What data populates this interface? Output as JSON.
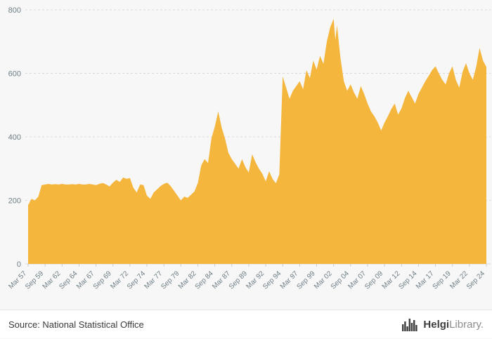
{
  "footer": {
    "source": "Source: National Statistical Office",
    "brand_bold": "Helgi",
    "brand_light": "Library."
  },
  "chart_data": {
    "type": "area",
    "title": "",
    "xlabel": "",
    "ylabel": "",
    "legend": "none",
    "grid": "horizontal-dashed",
    "background": "#f7f7f7",
    "fill_color": "#F5B63E",
    "grid_color": "#d8d8d8",
    "tick_color": "#6d7d85",
    "ylim": [
      0,
      800
    ],
    "xlim": [
      1957.25,
      2024.75
    ],
    "y_ticks": [
      0,
      200,
      400,
      600,
      800
    ],
    "x_ticks": [
      {
        "label": "Mar 57",
        "year": 1957.25
      },
      {
        "label": "Sep 59",
        "year": 1959.75
      },
      {
        "label": "Mar 62",
        "year": 1962.25
      },
      {
        "label": "Sep 64",
        "year": 1964.75
      },
      {
        "label": "Mar 67",
        "year": 1967.25
      },
      {
        "label": "Sep 69",
        "year": 1969.75
      },
      {
        "label": "Mar 72",
        "year": 1972.25
      },
      {
        "label": "Sep 74",
        "year": 1974.75
      },
      {
        "label": "Mar 77",
        "year": 1977.25
      },
      {
        "label": "Sep 79",
        "year": 1979.75
      },
      {
        "label": "Mar 82",
        "year": 1982.25
      },
      {
        "label": "Sep 84",
        "year": 1984.75
      },
      {
        "label": "Mar 87",
        "year": 1987.25
      },
      {
        "label": "Sep 89",
        "year": 1989.75
      },
      {
        "label": "Mar 92",
        "year": 1992.25
      },
      {
        "label": "Sep 94",
        "year": 1994.75
      },
      {
        "label": "Mar 97",
        "year": 1997.25
      },
      {
        "label": "Sep 99",
        "year": 1999.75
      },
      {
        "label": "Mar 02",
        "year": 2002.25
      },
      {
        "label": "Sep 04",
        "year": 2004.75
      },
      {
        "label": "Mar 07",
        "year": 2007.25
      },
      {
        "label": "Sep 09",
        "year": 2009.75
      },
      {
        "label": "Mar 12",
        "year": 2012.25
      },
      {
        "label": "Sep 14",
        "year": 2014.75
      },
      {
        "label": "Mar 17",
        "year": 2017.25
      },
      {
        "label": "Sep 19",
        "year": 2019.75
      },
      {
        "label": "Mar 22",
        "year": 2022.25
      },
      {
        "label": "Sep 24",
        "year": 2024.75
      }
    ],
    "series": [
      {
        "name": "value",
        "points": [
          [
            1957.25,
            185
          ],
          [
            1957.75,
            205
          ],
          [
            1958.25,
            200
          ],
          [
            1958.75,
            212
          ],
          [
            1959.25,
            248
          ],
          [
            1959.75,
            250
          ],
          [
            1960.25,
            252
          ],
          [
            1960.75,
            250
          ],
          [
            1961.25,
            251
          ],
          [
            1961.75,
            250
          ],
          [
            1962.25,
            252
          ],
          [
            1962.75,
            250
          ],
          [
            1963.25,
            250
          ],
          [
            1963.75,
            251
          ],
          [
            1964.25,
            250
          ],
          [
            1964.75,
            252
          ],
          [
            1965.25,
            250
          ],
          [
            1965.75,
            250
          ],
          [
            1966.25,
            252
          ],
          [
            1966.75,
            250
          ],
          [
            1967.25,
            248
          ],
          [
            1967.75,
            252
          ],
          [
            1968.25,
            255
          ],
          [
            1968.75,
            250
          ],
          [
            1969.25,
            244
          ],
          [
            1969.75,
            256
          ],
          [
            1970.25,
            265
          ],
          [
            1970.75,
            258
          ],
          [
            1971.25,
            272
          ],
          [
            1971.75,
            268
          ],
          [
            1972.25,
            270
          ],
          [
            1972.75,
            240
          ],
          [
            1973.25,
            225
          ],
          [
            1973.75,
            250
          ],
          [
            1974.25,
            248
          ],
          [
            1974.75,
            215
          ],
          [
            1975.25,
            205
          ],
          [
            1975.75,
            225
          ],
          [
            1976.25,
            235
          ],
          [
            1976.75,
            245
          ],
          [
            1977.25,
            252
          ],
          [
            1977.75,
            256
          ],
          [
            1978.25,
            245
          ],
          [
            1978.75,
            230
          ],
          [
            1979.25,
            215
          ],
          [
            1979.75,
            200
          ],
          [
            1980.25,
            212
          ],
          [
            1980.75,
            208
          ],
          [
            1981.25,
            218
          ],
          [
            1981.75,
            228
          ],
          [
            1982.25,
            255
          ],
          [
            1982.75,
            310
          ],
          [
            1983.25,
            330
          ],
          [
            1983.75,
            318
          ],
          [
            1984.25,
            395
          ],
          [
            1984.75,
            432
          ],
          [
            1985.25,
            480
          ],
          [
            1985.75,
            430
          ],
          [
            1986.25,
            395
          ],
          [
            1986.75,
            350
          ],
          [
            1987.25,
            330
          ],
          [
            1987.75,
            315
          ],
          [
            1988.25,
            300
          ],
          [
            1988.75,
            330
          ],
          [
            1989.25,
            305
          ],
          [
            1989.75,
            288
          ],
          [
            1990.25,
            345
          ],
          [
            1990.75,
            320
          ],
          [
            1991.25,
            300
          ],
          [
            1991.75,
            284
          ],
          [
            1992.25,
            260
          ],
          [
            1992.75,
            292
          ],
          [
            1993.25,
            268
          ],
          [
            1993.75,
            254
          ],
          [
            1994.25,
            282
          ],
          [
            1994.75,
            590
          ],
          [
            1995.25,
            555
          ],
          [
            1995.75,
            520
          ],
          [
            1996.25,
            545
          ],
          [
            1996.75,
            560
          ],
          [
            1997.25,
            575
          ],
          [
            1997.75,
            550
          ],
          [
            1998.25,
            610
          ],
          [
            1998.75,
            585
          ],
          [
            1999.25,
            640
          ],
          [
            1999.75,
            612
          ],
          [
            2000.25,
            655
          ],
          [
            2000.75,
            630
          ],
          [
            2001.25,
            700
          ],
          [
            2001.75,
            745
          ],
          [
            2002.25,
            772
          ],
          [
            2002.5,
            705
          ],
          [
            2002.75,
            752
          ],
          [
            2003.25,
            650
          ],
          [
            2003.75,
            575
          ],
          [
            2004.25,
            545
          ],
          [
            2004.75,
            565
          ],
          [
            2005.25,
            540
          ],
          [
            2005.75,
            520
          ],
          [
            2006.25,
            560
          ],
          [
            2006.75,
            535
          ],
          [
            2007.25,
            505
          ],
          [
            2007.75,
            480
          ],
          [
            2008.25,
            465
          ],
          [
            2008.75,
            445
          ],
          [
            2009.25,
            420
          ],
          [
            2009.75,
            445
          ],
          [
            2010.25,
            465
          ],
          [
            2010.75,
            488
          ],
          [
            2011.25,
            505
          ],
          [
            2011.75,
            470
          ],
          [
            2012.25,
            490
          ],
          [
            2012.75,
            522
          ],
          [
            2013.25,
            545
          ],
          [
            2013.75,
            525
          ],
          [
            2014.25,
            505
          ],
          [
            2014.75,
            535
          ],
          [
            2015.25,
            555
          ],
          [
            2015.75,
            575
          ],
          [
            2016.25,
            592
          ],
          [
            2016.75,
            610
          ],
          [
            2017.25,
            622
          ],
          [
            2017.75,
            600
          ],
          [
            2018.25,
            580
          ],
          [
            2018.75,
            565
          ],
          [
            2019.25,
            600
          ],
          [
            2019.75,
            622
          ],
          [
            2020.25,
            580
          ],
          [
            2020.75,
            555
          ],
          [
            2021.25,
            605
          ],
          [
            2021.75,
            632
          ],
          [
            2022.25,
            600
          ],
          [
            2022.75,
            580
          ],
          [
            2023.25,
            620
          ],
          [
            2023.75,
            680
          ],
          [
            2024.25,
            640
          ],
          [
            2024.75,
            620
          ]
        ]
      }
    ]
  }
}
